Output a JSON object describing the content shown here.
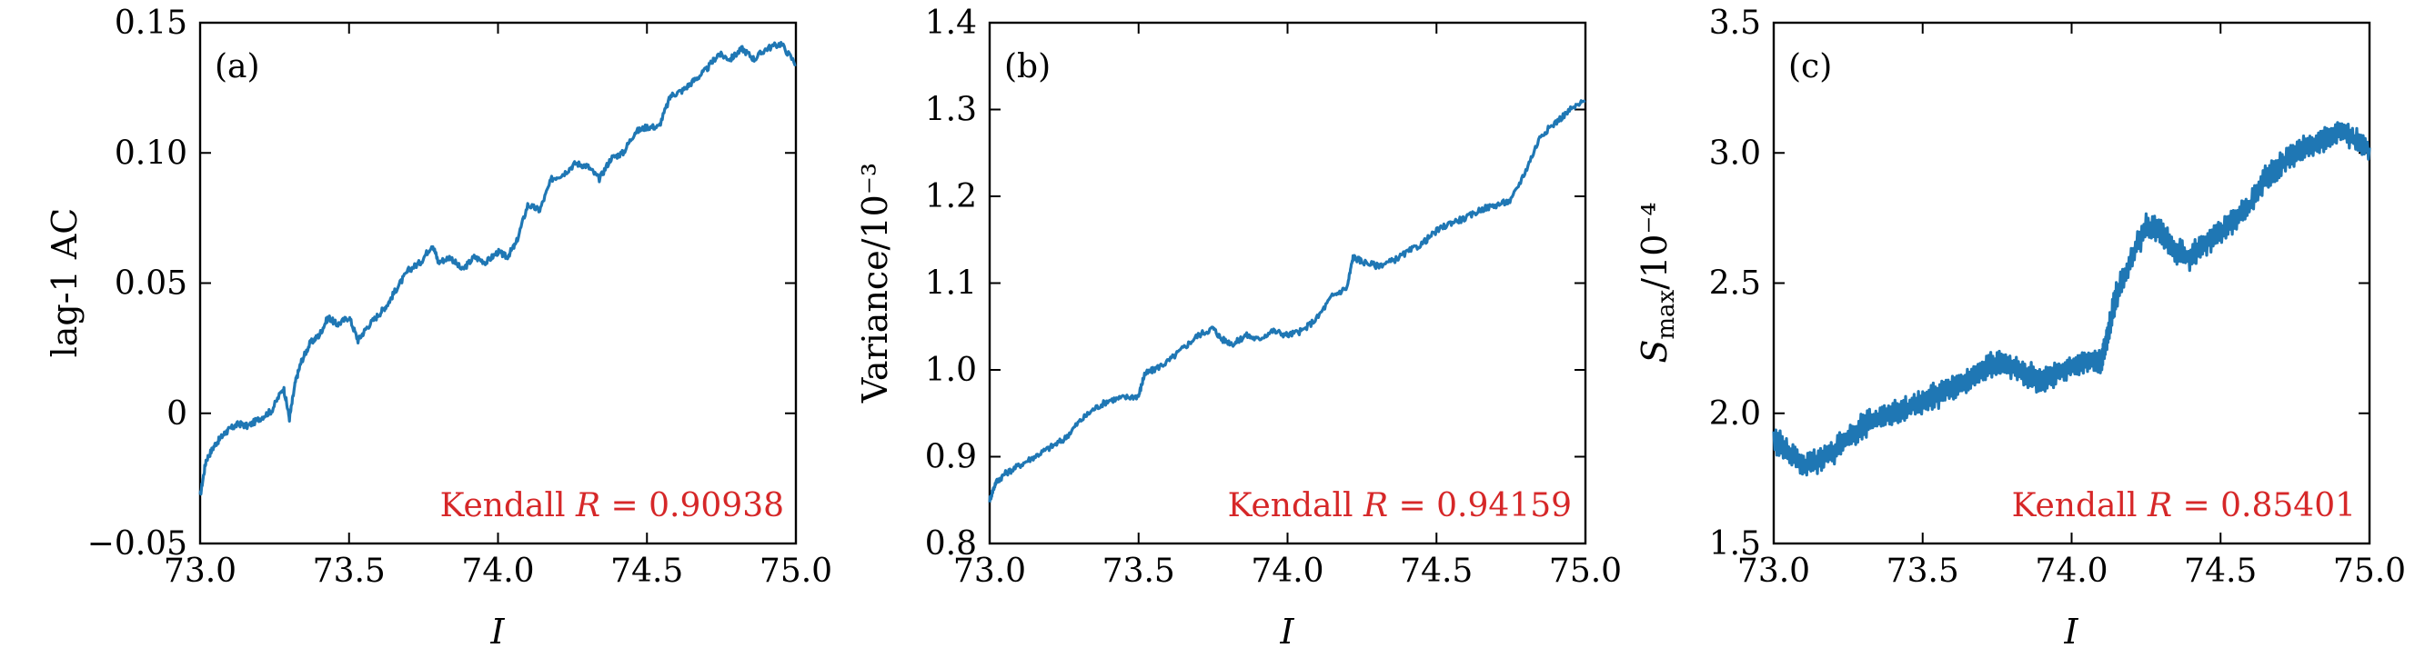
{
  "colors": {
    "series": "#1f77b4",
    "annotation": "#d62728"
  },
  "chart_data": [
    {
      "type": "line",
      "panel_label": "(a)",
      "xlabel": "I",
      "ylabel": "lag-1 AC",
      "xlim": [
        73.0,
        75.0
      ],
      "ylim": [
        -0.05,
        0.15
      ],
      "xticks": [
        73.0,
        73.5,
        74.0,
        74.5,
        75.0
      ],
      "xtick_labels": [
        "73.0",
        "73.5",
        "74.0",
        "74.5",
        "75.0"
      ],
      "yticks": [
        -0.05,
        0,
        0.05,
        0.1,
        0.15
      ],
      "ytick_labels": [
        "−0.05",
        "0",
        "0.05",
        "0.10",
        "0.15"
      ],
      "annotation": {
        "prefix": "Kendall ",
        "var": "R",
        "value": " = 0.90938"
      },
      "series": [
        {
          "x": [
            73.0,
            73.02,
            73.05,
            73.08,
            73.1,
            73.13,
            73.16,
            73.2,
            73.24,
            73.28,
            73.3,
            73.32,
            73.34,
            73.37,
            73.4,
            73.43,
            73.46,
            73.5,
            73.53,
            73.56,
            73.6,
            73.63,
            73.66,
            73.7,
            73.74,
            73.78,
            73.8,
            73.84,
            73.88,
            73.92,
            73.96,
            74.0,
            74.03,
            74.06,
            74.1,
            74.14,
            74.18,
            74.22,
            74.26,
            74.3,
            74.34,
            74.38,
            74.42,
            74.46,
            74.5,
            74.54,
            74.58,
            74.62,
            74.66,
            74.7,
            74.74,
            74.78,
            74.82,
            74.86,
            74.9,
            74.95,
            75.0
          ],
          "y": [
            -0.032,
            -0.018,
            -0.012,
            -0.008,
            -0.006,
            -0.004,
            -0.005,
            -0.002,
            0.001,
            0.01,
            -0.002,
            0.012,
            0.02,
            0.027,
            0.03,
            0.037,
            0.034,
            0.037,
            0.028,
            0.033,
            0.038,
            0.042,
            0.048,
            0.055,
            0.058,
            0.065,
            0.058,
            0.06,
            0.055,
            0.06,
            0.058,
            0.062,
            0.06,
            0.065,
            0.08,
            0.078,
            0.09,
            0.092,
            0.096,
            0.095,
            0.09,
            0.098,
            0.1,
            0.108,
            0.11,
            0.11,
            0.122,
            0.124,
            0.128,
            0.132,
            0.138,
            0.136,
            0.14,
            0.136,
            0.14,
            0.142,
            0.134
          ]
        }
      ]
    },
    {
      "type": "line",
      "panel_label": "(b)",
      "xlabel": "I",
      "ylabel": "Variance/10⁻³",
      "xlim": [
        73.0,
        75.0
      ],
      "ylim": [
        0.8,
        1.4
      ],
      "xticks": [
        73.0,
        73.5,
        74.0,
        74.5,
        75.0
      ],
      "xtick_labels": [
        "73.0",
        "73.5",
        "74.0",
        "74.5",
        "75.0"
      ],
      "yticks": [
        0.8,
        0.9,
        1.0,
        1.1,
        1.2,
        1.3,
        1.4
      ],
      "ytick_labels": [
        "0.8",
        "0.9",
        "1.0",
        "1.1",
        "1.2",
        "1.3",
        "1.4"
      ],
      "annotation": {
        "prefix": "Kendall ",
        "var": "R",
        "value": " = 0.94159"
      },
      "series": [
        {
          "x": [
            73.0,
            73.02,
            73.05,
            73.1,
            73.15,
            73.2,
            73.25,
            73.3,
            73.35,
            73.4,
            73.45,
            73.5,
            73.52,
            73.55,
            73.6,
            73.65,
            73.7,
            73.75,
            73.78,
            73.82,
            73.86,
            73.9,
            73.95,
            74.0,
            74.05,
            74.1,
            74.15,
            74.2,
            74.22,
            74.25,
            74.3,
            74.35,
            74.4,
            74.45,
            74.5,
            74.55,
            74.6,
            74.65,
            74.7,
            74.75,
            74.8,
            74.85,
            74.9,
            74.95,
            75.0
          ],
          "y": [
            0.85,
            0.87,
            0.88,
            0.89,
            0.9,
            0.91,
            0.92,
            0.94,
            0.955,
            0.965,
            0.968,
            0.97,
            0.995,
            1.0,
            1.01,
            1.025,
            1.04,
            1.048,
            1.035,
            1.03,
            1.04,
            1.035,
            1.045,
            1.04,
            1.045,
            1.06,
            1.085,
            1.095,
            1.13,
            1.125,
            1.12,
            1.125,
            1.135,
            1.145,
            1.16,
            1.17,
            1.175,
            1.185,
            1.19,
            1.195,
            1.23,
            1.27,
            1.285,
            1.3,
            1.31
          ]
        }
      ]
    },
    {
      "type": "line",
      "panel_label": "(c)",
      "xlabel": "I",
      "ylabel": "S_max/10⁻⁴",
      "ylabel_main": "S",
      "ylabel_sub": "max",
      "ylabel_rest": "/10⁻⁴",
      "xlim": [
        73.0,
        75.0
      ],
      "ylim": [
        1.5,
        3.5
      ],
      "xticks": [
        73.0,
        73.5,
        74.0,
        74.5,
        75.0
      ],
      "xtick_labels": [
        "73.0",
        "73.5",
        "74.0",
        "74.5",
        "75.0"
      ],
      "yticks": [
        1.5,
        2.0,
        2.5,
        3.0,
        3.5
      ],
      "ytick_labels": [
        "1.5",
        "2.0",
        "2.5",
        "3.0",
        "3.5"
      ],
      "annotation": {
        "prefix": "Kendall ",
        "var": "R",
        "value": " = 0.85401"
      },
      "oscillation_amplitude": 0.04,
      "series": [
        {
          "x": [
            73.0,
            73.05,
            73.1,
            73.15,
            73.2,
            73.25,
            73.3,
            73.35,
            73.4,
            73.45,
            73.5,
            73.55,
            73.6,
            73.65,
            73.7,
            73.75,
            73.8,
            73.85,
            73.9,
            73.95,
            74.0,
            74.05,
            74.1,
            74.12,
            74.15,
            74.2,
            74.25,
            74.3,
            74.35,
            74.4,
            74.45,
            74.5,
            74.55,
            74.6,
            74.65,
            74.7,
            74.75,
            74.8,
            74.85,
            74.9,
            74.95,
            75.0
          ],
          "y": [
            1.9,
            1.85,
            1.8,
            1.82,
            1.85,
            1.9,
            1.95,
            1.98,
            2.0,
            2.02,
            2.05,
            2.07,
            2.1,
            2.12,
            2.17,
            2.2,
            2.18,
            2.15,
            2.12,
            2.15,
            2.18,
            2.2,
            2.2,
            2.3,
            2.45,
            2.6,
            2.72,
            2.7,
            2.62,
            2.6,
            2.65,
            2.7,
            2.75,
            2.8,
            2.9,
            2.95,
            3.0,
            3.02,
            3.05,
            3.08,
            3.05,
            3.02
          ]
        }
      ]
    }
  ]
}
